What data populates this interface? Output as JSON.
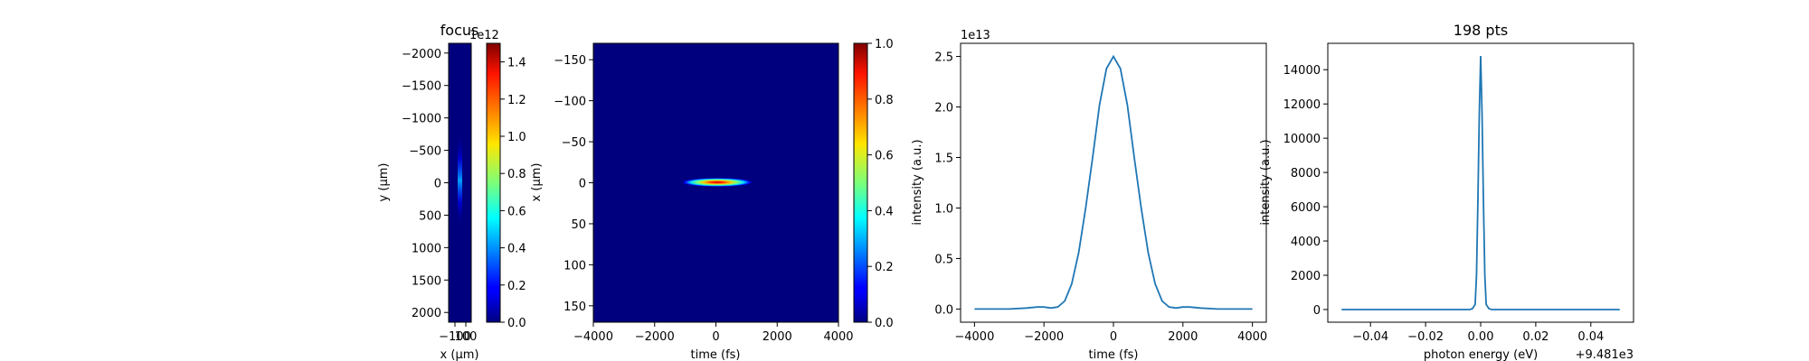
{
  "chart_data": [
    {
      "type": "heatmap",
      "title": "focus",
      "xlabel": "x (μm)",
      "ylabel": "y (μm)",
      "x_ticks": [
        "−100",
        "100"
      ],
      "y_ticks": [
        "−2000",
        "−1500",
        "−1000",
        "−500",
        "0",
        "500",
        "1000",
        "1500",
        "2000"
      ],
      "ylim": [
        2150,
        -2150
      ],
      "colormap": "jet",
      "colorbar": {
        "ticks": [
          "0.0",
          "0.2",
          "0.4",
          "0.6",
          "0.8",
          "1.0",
          "1.2",
          "1.4"
        ],
        "offset_text": "1e12",
        "range": [
          0,
          1.5
        ]
      }
    },
    {
      "type": "heatmap",
      "title": "",
      "xlabel": "time (fs)",
      "ylabel": "x (μm)",
      "x_ticks": [
        "−4000",
        "−2000",
        "0",
        "2000",
        "4000"
      ],
      "y_ticks": [
        "−150",
        "−100",
        "−50",
        "0",
        "50",
        "100",
        "150"
      ],
      "xlim": [
        -4000,
        4000
      ],
      "ylim": [
        170,
        -170
      ],
      "colormap": "jet",
      "colorbar": {
        "ticks": [
          "0.0",
          "0.2",
          "0.4",
          "0.6",
          "0.8",
          "1.0"
        ],
        "range": [
          0,
          1
        ]
      }
    },
    {
      "type": "line",
      "title": "",
      "xlabel": "time (fs)",
      "ylabel": "intensity (a.u.)",
      "x_ticks": [
        "−4000",
        "−2000",
        "0",
        "2000",
        "4000"
      ],
      "y_ticks": [
        "0.0",
        "0.5",
        "1.0",
        "1.5",
        "2.0",
        "2.5"
      ],
      "y_offset_text": "1e13",
      "xlim": [
        -4400,
        4400
      ],
      "ylim": [
        -0.13,
        2.63
      ],
      "series_color": "#1f77b4",
      "x": [
        -4000,
        -3500,
        -3000,
        -2500,
        -2200,
        -2000,
        -1800,
        -1600,
        -1400,
        -1200,
        -1000,
        -800,
        -600,
        -400,
        -200,
        0,
        200,
        400,
        600,
        800,
        1000,
        1200,
        1400,
        1600,
        1800,
        2000,
        2200,
        2500,
        3000,
        3500,
        4000
      ],
      "y": [
        0.0,
        0.0,
        0.0,
        0.01,
        0.02,
        0.02,
        0.01,
        0.02,
        0.08,
        0.25,
        0.56,
        1.0,
        1.5,
        2.02,
        2.38,
        2.5,
        2.38,
        2.02,
        1.5,
        1.0,
        0.56,
        0.25,
        0.08,
        0.02,
        0.01,
        0.02,
        0.02,
        0.01,
        0.0,
        0.0,
        0.0
      ]
    },
    {
      "type": "line",
      "title": "198 pts",
      "xlabel": "photon energy (eV)",
      "ylabel": "intensity (a.u.)",
      "x_ticks": [
        "−0.04",
        "−0.02",
        "0.00",
        "0.02",
        "0.04"
      ],
      "y_ticks": [
        "0",
        "2000",
        "4000",
        "6000",
        "8000",
        "10000",
        "12000",
        "14000"
      ],
      "x_offset_text": "+9.481e3",
      "xlim": [
        -0.0555,
        0.0555
      ],
      "ylim": [
        -740,
        15540
      ],
      "series_color": "#1f77b4",
      "x": [
        -0.0505,
        -0.01,
        -0.004,
        -0.003,
        -0.002,
        -0.0015,
        -0.001,
        -0.0005,
        0.0,
        0.0005,
        0.001,
        0.0015,
        0.002,
        0.003,
        0.004,
        0.01,
        0.0505
      ],
      "y": [
        0,
        0,
        0,
        50,
        300,
        2000,
        6500,
        11500,
        14800,
        11500,
        6500,
        2000,
        300,
        50,
        0,
        0,
        0
      ]
    }
  ]
}
